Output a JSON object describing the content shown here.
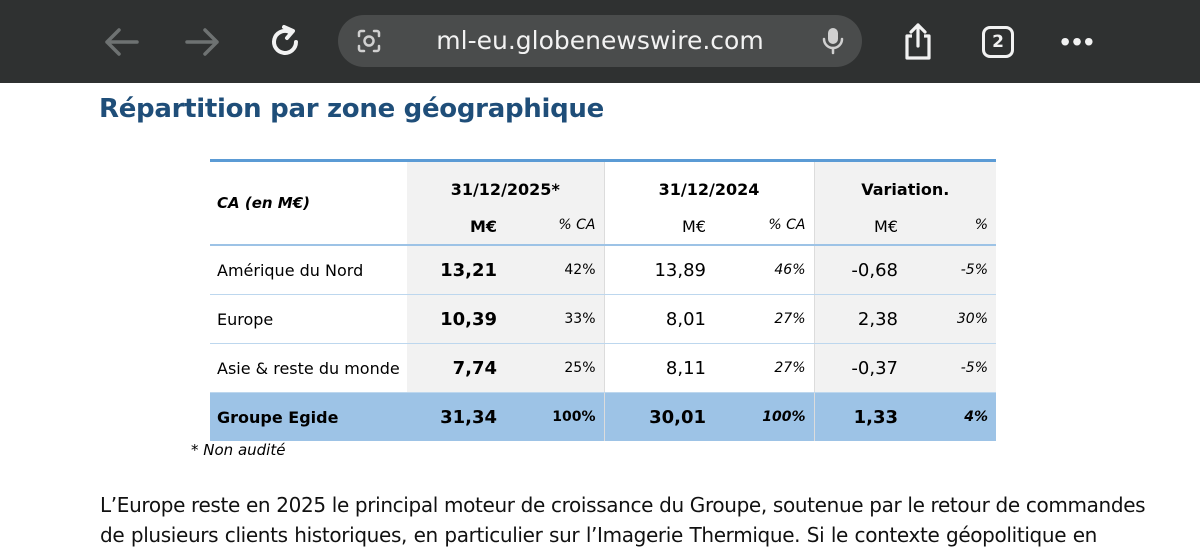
{
  "browser": {
    "url": "ml-eu.globenewswire.com",
    "tab_count": "2",
    "more": "•••",
    "icons": [
      "back-arrow-icon",
      "forward-arrow-icon",
      "reload-icon",
      "lens-icon",
      "microphone-icon",
      "share-icon",
      "tabs-icon",
      "more-icon"
    ]
  },
  "page": {
    "heading": "Répartition par zone géographique",
    "table": {
      "corner_label": "CA (en M€)",
      "periods": [
        "31/12/2025*",
        "31/12/2024",
        "Variation."
      ],
      "subheaders": [
        "M€",
        "% CA",
        "M€",
        "% CA",
        "M€",
        "%"
      ],
      "rows": [
        {
          "label": "Amérique du Nord",
          "v2025": "13,21",
          "p2025": "42%",
          "v2024": "13,89",
          "p2024": "46%",
          "var": "-0,68",
          "varp": "-5%"
        },
        {
          "label": "Europe",
          "v2025": "10,39",
          "p2025": "33%",
          "v2024": "8,01",
          "p2024": "27%",
          "var": "2,38",
          "varp": "30%"
        },
        {
          "label": "Asie & reste du monde",
          "v2025": "7,74",
          "p2025": "25%",
          "v2024": "8,11",
          "p2024": "27%",
          "var": "-0,37",
          "varp": "-5%"
        }
      ],
      "total": {
        "label": "Groupe Egide",
        "v2025": "31,34",
        "p2025": "100%",
        "v2024": "30,01",
        "p2024": "100%",
        "var": "1,33",
        "varp": "4%"
      }
    },
    "footnote": "* Non audité",
    "paragraph_lines": [
      "L’Europe reste en 2025 le principal moteur de croissance du Groupe, soutenue par le retour de commandes",
      "de plusieurs clients historiques, en particulier sur l’Imagerie Thermique. Si le contexte géopolitique en"
    ]
  }
}
